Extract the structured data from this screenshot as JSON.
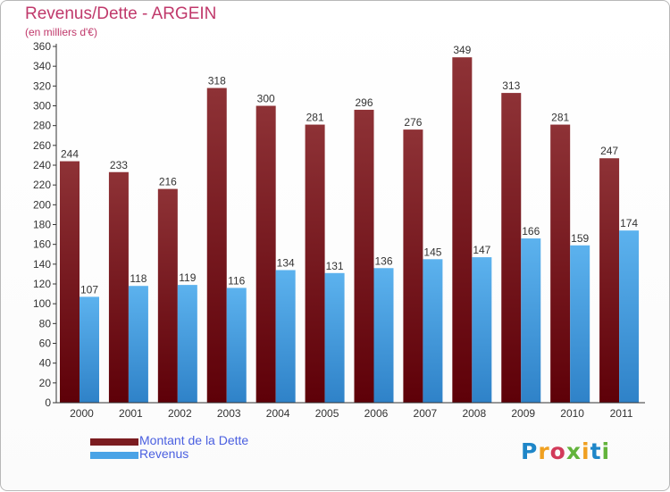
{
  "chart_data": {
    "type": "bar",
    "title": "Revenus/Dette - ARGEIN",
    "subtitle": "(en milliers d'€)",
    "categories": [
      "2000",
      "2001",
      "2002",
      "2003",
      "2004",
      "2005",
      "2006",
      "2007",
      "2008",
      "2009",
      "2010",
      "2011"
    ],
    "series": [
      {
        "name": "Montant de la Dette",
        "values": [
          244,
          233,
          216,
          318,
          300,
          281,
          296,
          276,
          349,
          313,
          281,
          247
        ],
        "color": "#7b1c20"
      },
      {
        "name": "Revenus",
        "values": [
          107,
          118,
          119,
          116,
          134,
          131,
          136,
          145,
          147,
          166,
          159,
          174
        ],
        "color": "#4aa3e6"
      }
    ],
    "ylim": [
      0,
      360
    ],
    "ytick_step": 20,
    "grid": false,
    "data_labels": true,
    "legend_position": "bottom-left"
  },
  "logo": {
    "letters": [
      "P",
      "r",
      "o",
      "x",
      "i",
      "t",
      "i"
    ],
    "colors": [
      "#1e86c8",
      "#f0a020",
      "#d23b5a",
      "#62b33b",
      "#f0a020",
      "#1e86c8",
      "#62b33b"
    ]
  }
}
